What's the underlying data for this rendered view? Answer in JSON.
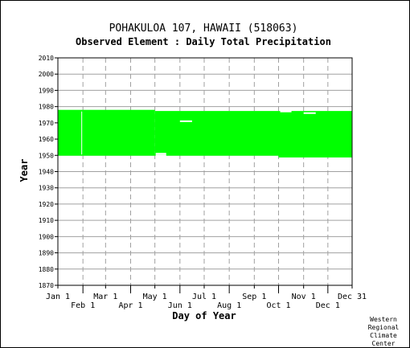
{
  "chart_data": {
    "type": "bar",
    "title": "POHAKULOA 107, HAWAII   (518063)",
    "subtitle": "Observed Element : Daily Total Precipitation",
    "xlabel": "Day of Year",
    "ylabel": "Year",
    "x_range_doy": [
      1,
      365
    ],
    "ylim": [
      1870,
      2010
    ],
    "y_ticks": [
      1870,
      1880,
      1890,
      1900,
      1910,
      1920,
      1930,
      1940,
      1950,
      1960,
      1970,
      1980,
      1990,
      2000,
      2010
    ],
    "x_ticks_top_row": [
      {
        "label": "Jan 1",
        "doy": 1
      },
      {
        "label": "Mar 1",
        "doy": 60
      },
      {
        "label": "May 1",
        "doy": 121
      },
      {
        "label": "Jul 1",
        "doy": 182
      },
      {
        "label": "Sep 1",
        "doy": 244
      },
      {
        "label": "Nov 1",
        "doy": 305
      },
      {
        "label": "Dec 31",
        "doy": 365
      }
    ],
    "x_ticks_bottom_row": [
      {
        "label": "Feb 1",
        "doy": 32
      },
      {
        "label": "Apr 1",
        "doy": 91
      },
      {
        "label": "Jun 1",
        "doy": 152
      },
      {
        "label": "Aug 1",
        "doy": 213
      },
      {
        "label": "Oct 1",
        "doy": 274
      },
      {
        "label": "Dec 1",
        "doy": 335
      }
    ],
    "grid": true,
    "series": [
      {
        "color": "#00ff00",
        "coverage": [
          {
            "doy_start": 1,
            "doy_end": 121,
            "year_start": 1949.8,
            "year_end": 1978.0
          },
          {
            "doy_start": 121,
            "doy_end": 274,
            "year_start": 1949.8,
            "year_end": 1977.3
          },
          {
            "doy_start": 274,
            "doy_end": 365,
            "year_start": 1948.7,
            "year_end": 1977.3
          }
        ],
        "gaps": [
          {
            "doy_start": 122,
            "doy_end": 135,
            "year": 1951.0
          },
          {
            "doy_start": 122,
            "doy_end": 135,
            "year": 1950.0
          },
          {
            "doy_start": 152,
            "doy_end": 167,
            "year": 1971.0
          },
          {
            "doy_start": 30,
            "doy_end": 31,
            "year_start": 1950.5,
            "year_end": 1977.0
          },
          {
            "doy_start": 276,
            "doy_end": 290,
            "year": 1977.0
          },
          {
            "doy_start": 305,
            "doy_end": 320,
            "year": 1976.0
          }
        ]
      }
    ]
  },
  "footer": {
    "line1": "Western",
    "line2": "Regional",
    "line3": "Climate",
    "line4": "Center"
  }
}
